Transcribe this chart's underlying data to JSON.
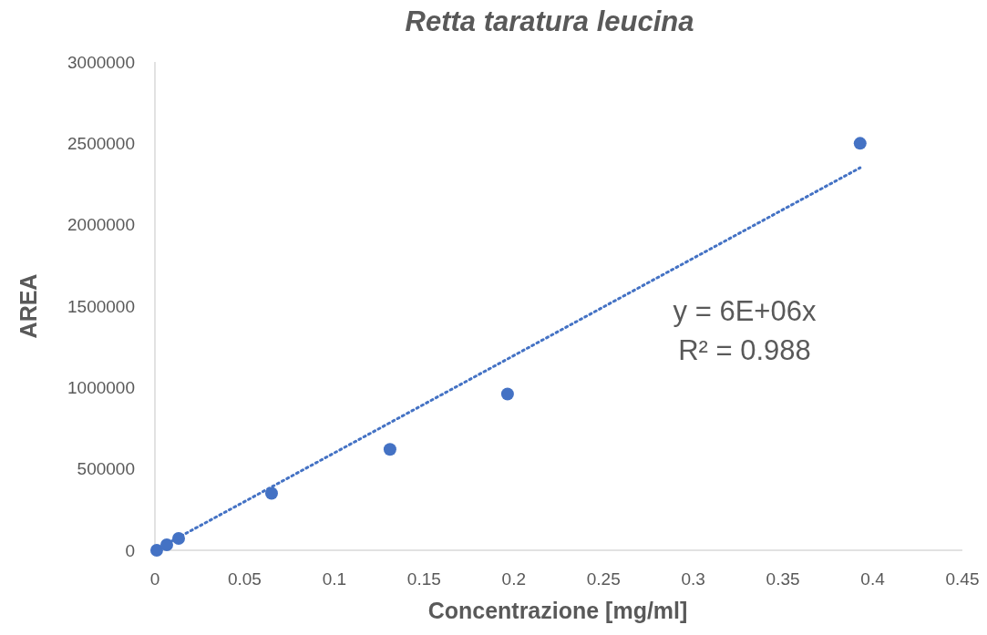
{
  "chart_data": {
    "type": "scatter",
    "title": "Retta taratura leucina",
    "xlabel": "Concentrazione [mg/ml]",
    "ylabel": "AREA",
    "xlim": [
      0,
      0.45
    ],
    "xticks": [
      0,
      0.05,
      0.1,
      0.15,
      0.2,
      0.25,
      0.3,
      0.35,
      0.4,
      0.45
    ],
    "ylim": [
      0,
      3000000
    ],
    "yticks": [
      0,
      500000,
      1000000,
      1500000,
      2000000,
      2500000,
      3000000
    ],
    "grid": false,
    "series": [
      {
        "color": "#4472c4",
        "marker": "circle",
        "x": [
          0.001,
          0.0066,
          0.0132,
          0.065,
          0.131,
          0.1965,
          0.393
        ],
        "values": [
          0,
          34000,
          73000,
          350000,
          620000,
          960000,
          2500000
        ]
      },
      {
        "type": "line",
        "color": "#4472c4",
        "line_style": "dotted",
        "marker": "none",
        "x": [
          0.0066,
          0.393
        ],
        "values": [
          40000,
          2350000
        ]
      }
    ],
    "annotations": [
      "y = 6E+06x",
      "R² = 0.988"
    ]
  }
}
